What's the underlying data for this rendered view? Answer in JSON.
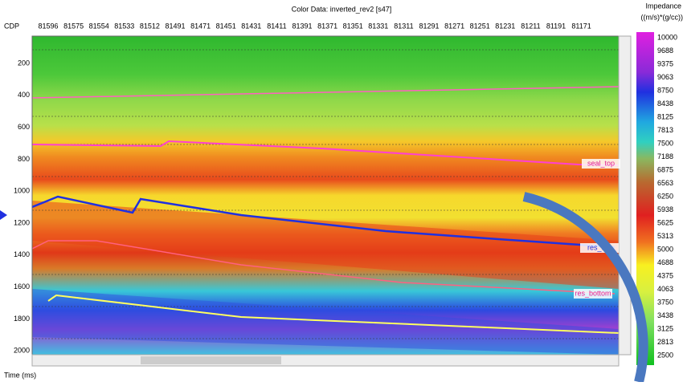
{
  "header": {
    "title": "Color Data: inverted_rev2 [s47]"
  },
  "axis": {
    "cdp_label": "CDP",
    "time_label": "Time (ms)",
    "cdp_ticks": [
      "81596",
      "81575",
      "81554",
      "81533",
      "81512",
      "81491",
      "81471",
      "81451",
      "81431",
      "81411",
      "81391",
      "81371",
      "81351",
      "81331",
      "81311",
      "81291",
      "81271",
      "81251",
      "81231",
      "81211",
      "81191",
      "81171"
    ],
    "time_ticks": [
      "200",
      "400",
      "600",
      "800",
      "1000",
      "1200",
      "1400",
      "1600",
      "1800",
      "2000"
    ]
  },
  "colorbar": {
    "title": "Impedance",
    "unit": "((m/s)*(g/cc))",
    "labels": [
      "10000",
      "9688",
      "9375",
      "9063",
      "8750",
      "8438",
      "8125",
      "7813",
      "7500",
      "7188",
      "6875",
      "6563",
      "6250",
      "5938",
      "5625",
      "5313",
      "5000",
      "4688",
      "4375",
      "4063",
      "3750",
      "3438",
      "3125",
      "2813",
      "2500"
    ]
  },
  "horizons": [
    "seal_top",
    "res_top",
    "res_bottom"
  ]
}
